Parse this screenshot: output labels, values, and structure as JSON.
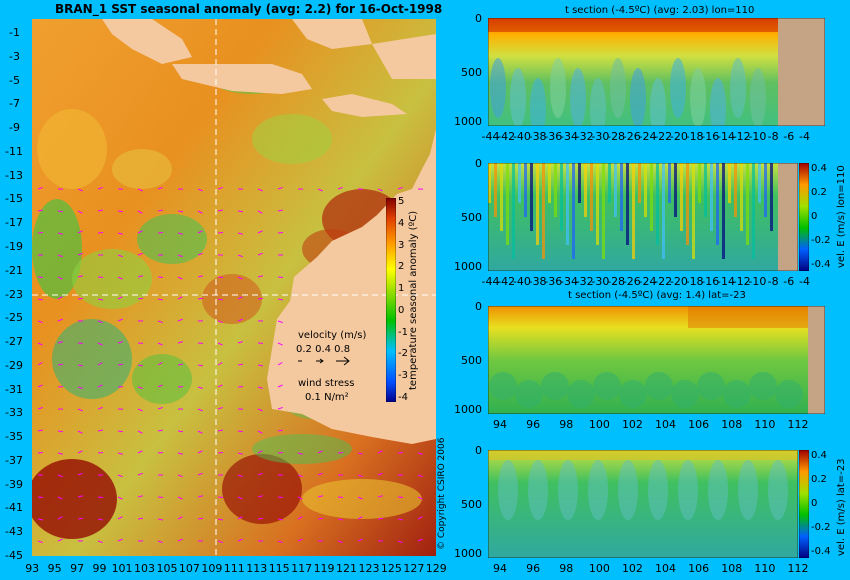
{
  "colors": {
    "background": "#00BFFF",
    "land": "#F5C9A0",
    "section_land": "#C4A485",
    "arrow": "#FF00FF"
  },
  "map": {
    "title": "BRAN_1  SST seasonal anomaly  (avg: 2.2)  for 16-Oct-1998",
    "x_ticks": [
      "93",
      "95",
      "97",
      "99",
      "101",
      "103",
      "105",
      "107",
      "109",
      "111",
      "113",
      "115",
      "117",
      "119",
      "121",
      "123",
      "125",
      "127",
      "129"
    ],
    "y_ticks": [
      "-1",
      "-3",
      "-5",
      "-7",
      "-9",
      "-11",
      "-13",
      "-15",
      "-17",
      "-19",
      "-21",
      "-23",
      "-25",
      "-27",
      "-29",
      "-31",
      "-33",
      "-35",
      "-37",
      "-39",
      "-41",
      "-43",
      "-45"
    ],
    "colorbar": {
      "label": "temperature seasonal anomaly (ºC)",
      "ticks": [
        "5",
        "4",
        "3",
        "2",
        "1",
        "0",
        "-1",
        "-2",
        "-3",
        "-4"
      ]
    },
    "velocity_legend": {
      "title": "velocity (m/s)",
      "values": "0.2 0.4 0.8"
    },
    "wind_legend": {
      "title": "wind stress",
      "value": "0.1 N/m²"
    },
    "copyright": "© Copyright CSIRO 2006"
  },
  "panels": {
    "p1": {
      "title": "t section (-4.5ºC) (avg: 2.03) lon=110",
      "y_ticks": [
        "0",
        "500",
        "1000"
      ],
      "x_ticks": [
        "-44",
        "-42",
        "-40",
        "-38",
        "-36",
        "-34",
        "-32",
        "-30",
        "-28",
        "-26",
        "-24",
        "-22",
        "-20",
        "-18",
        "-16",
        "-14",
        "-12",
        "-10",
        "-8",
        "-6",
        "-4"
      ]
    },
    "p2": {
      "y_ticks": [
        "0",
        "500",
        "1000"
      ],
      "x_ticks": [
        "-44",
        "-42",
        "-40",
        "-38",
        "-36",
        "-34",
        "-32",
        "-30",
        "-28",
        "-26",
        "-24",
        "-22",
        "-20",
        "-18",
        "-16",
        "-14",
        "-12",
        "-10",
        "-8",
        "-6",
        "-4"
      ],
      "colorbar_ticks": [
        "0.4",
        "0.2",
        "0",
        "-0.2",
        "-0.4"
      ],
      "colorbar_label": "vel. E (m/s) lon=110"
    },
    "p3": {
      "title": "t section (-4.5ºC) (avg: 1.4) lat=-23",
      "y_ticks": [
        "0",
        "500",
        "1000"
      ],
      "x_ticks": [
        "94",
        "96",
        "98",
        "100",
        "102",
        "104",
        "106",
        "108",
        "110",
        "112"
      ]
    },
    "p4": {
      "y_ticks": [
        "0",
        "500",
        "1000"
      ],
      "x_ticks": [
        "94",
        "96",
        "98",
        "100",
        "102",
        "104",
        "106",
        "108",
        "110",
        "112"
      ],
      "colorbar_ticks": [
        "0.4",
        "0.2",
        "0",
        "-0.2",
        "-0.4"
      ],
      "colorbar_label": "vel. E (m/s) lat=-23"
    }
  },
  "chart_data": [
    {
      "type": "heatmap",
      "title": "BRAN_1  SST seasonal anomaly  (avg: 2.2)  for 16-Oct-1998",
      "x_ticks": [
        93,
        95,
        97,
        99,
        101,
        103,
        105,
        107,
        109,
        111,
        113,
        115,
        117,
        119,
        121,
        123,
        125,
        127,
        129
      ],
      "y_ticks": [
        -1,
        -3,
        -5,
        -7,
        -9,
        -11,
        -13,
        -15,
        -17,
        -19,
        -21,
        -23,
        -25,
        -27,
        -29,
        -31,
        -33,
        -35,
        -37,
        -39,
        -41,
        -43,
        -45
      ],
      "colorbar_range": [
        -4,
        5
      ],
      "colorbar_label": "temperature seasonal anomaly (ºC)",
      "crosshair": {
        "lon": 110,
        "lat": -23
      }
    },
    {
      "type": "heatmap",
      "title": "t section (-4.5ºC) (avg: 2.03) lon=110",
      "x_ticks": [
        -44,
        -42,
        -40,
        -38,
        -36,
        -34,
        -32,
        -30,
        -28,
        -26,
        -24,
        -22,
        -20,
        -18,
        -16,
        -14,
        -12,
        -10,
        -8,
        -6,
        -4
      ],
      "y_ticks": [
        0,
        500,
        1000
      ]
    },
    {
      "type": "heatmap",
      "colorbar_label": "vel. E (m/s) lon=110",
      "colorbar_range": [
        -0.4,
        0.4
      ],
      "x_ticks": [
        -44,
        -42,
        -40,
        -38,
        -36,
        -34,
        -32,
        -30,
        -28,
        -26,
        -24,
        -22,
        -20,
        -18,
        -16,
        -14,
        -12,
        -10,
        -8,
        -6,
        -4
      ],
      "y_ticks": [
        0,
        500,
        1000
      ]
    },
    {
      "type": "heatmap",
      "title": "t section (-4.5ºC) (avg: 1.4) lat=-23",
      "x_ticks": [
        94,
        96,
        98,
        100,
        102,
        104,
        106,
        108,
        110,
        112
      ],
      "y_ticks": [
        0,
        500,
        1000
      ]
    },
    {
      "type": "heatmap",
      "colorbar_label": "vel. E (m/s) lat=-23",
      "colorbar_range": [
        -0.4,
        0.4
      ],
      "x_ticks": [
        94,
        96,
        98,
        100,
        102,
        104,
        106,
        108,
        110,
        112
      ],
      "y_ticks": [
        0,
        500,
        1000
      ]
    }
  ]
}
